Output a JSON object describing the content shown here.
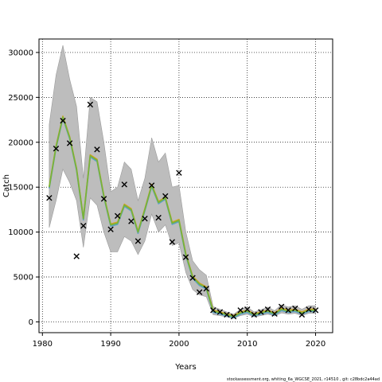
{
  "chart_data": {
    "type": "line",
    "xlabel": "Years",
    "ylabel": "Catch",
    "xlim": [
      1979.5,
      2022.5
    ],
    "ylim": [
      -1200,
      31500
    ],
    "x_ticks": [
      1980,
      1990,
      2000,
      2010,
      2020
    ],
    "y_ticks": [
      0,
      5000,
      10000,
      15000,
      20000,
      25000,
      30000
    ],
    "grid": true,
    "footnote": "stockassessment.org, whiting_6a_WGCSE_2021, r14510 , git: c28bdc2a44ad",
    "colors": {
      "band": "#bdbdbd",
      "band_edge": "#9a9a9a",
      "line_main": "#78b33a",
      "line_alt": "#d9a01e",
      "line_tail": "#5aa0c8",
      "marker": "#000000"
    },
    "observed": {
      "x": [
        1981,
        1982,
        1983,
        1984,
        1985,
        1986,
        1987,
        1988,
        1989,
        1990,
        1991,
        1992,
        1993,
        1994,
        1995,
        1996,
        1997,
        1998,
        1999,
        2000,
        2001,
        2002,
        2003,
        2004,
        2005,
        2006,
        2007,
        2008,
        2009,
        2010,
        2011,
        2012,
        2013,
        2014,
        2015,
        2016,
        2017,
        2018,
        2019,
        2020
      ],
      "y": [
        13800,
        19300,
        22400,
        19900,
        7300,
        10700,
        24200,
        19200,
        13700,
        10300,
        11800,
        15300,
        11200,
        9000,
        11500,
        15200,
        11600,
        14000,
        8900,
        16600,
        7200,
        4900,
        3300,
        3700,
        1300,
        1100,
        800,
        600,
        1300,
        1400,
        800,
        1100,
        1400,
        900,
        1700,
        1300,
        1500,
        800,
        1400,
        1300
      ]
    },
    "estimated": {
      "x": [
        1981,
        1982,
        1983,
        1984,
        1985,
        1986,
        1987,
        1988,
        1989,
        1990,
        1991,
        1992,
        1993,
        1994,
        1995,
        1996,
        1997,
        1998,
        1999,
        2000,
        2001,
        2002,
        2003,
        2004,
        2005,
        2006,
        2007,
        2008,
        2009,
        2010,
        2011,
        2012,
        2013,
        2014,
        2015,
        2016,
        2017,
        2018,
        2019,
        2020
      ],
      "y": [
        15000,
        19500,
        22800,
        20500,
        17000,
        11500,
        18500,
        18000,
        14000,
        10800,
        11000,
        13000,
        12500,
        10000,
        12500,
        15200,
        13300,
        13800,
        11000,
        11300,
        7500,
        5000,
        4200,
        3800,
        1200,
        1000,
        800,
        600,
        1000,
        1200,
        800,
        1000,
        1200,
        900,
        1400,
        1200,
        1300,
        1000,
        1300,
        1300
      ],
      "lower": [
        10500,
        13500,
        17000,
        15500,
        13500,
        8300,
        13800,
        13000,
        10000,
        7800,
        7800,
        9500,
        9000,
        7500,
        9000,
        12000,
        10000,
        10800,
        8500,
        8800,
        5500,
        3600,
        3000,
        2800,
        800,
        700,
        550,
        400,
        700,
        850,
        550,
        700,
        850,
        650,
        1000,
        850,
        950,
        700,
        950,
        950
      ],
      "upper": [
        22000,
        27500,
        30800,
        27000,
        24000,
        16000,
        25000,
        24500,
        20000,
        14500,
        15000,
        17800,
        17000,
        13500,
        16000,
        20500,
        17800,
        18800,
        15000,
        15200,
        10000,
        6800,
        5800,
        5200,
        1700,
        1400,
        1100,
        850,
        1400,
        1650,
        1100,
        1350,
        1650,
        1250,
        1900,
        1650,
        1800,
        1400,
        1800,
        1800
      ]
    }
  }
}
